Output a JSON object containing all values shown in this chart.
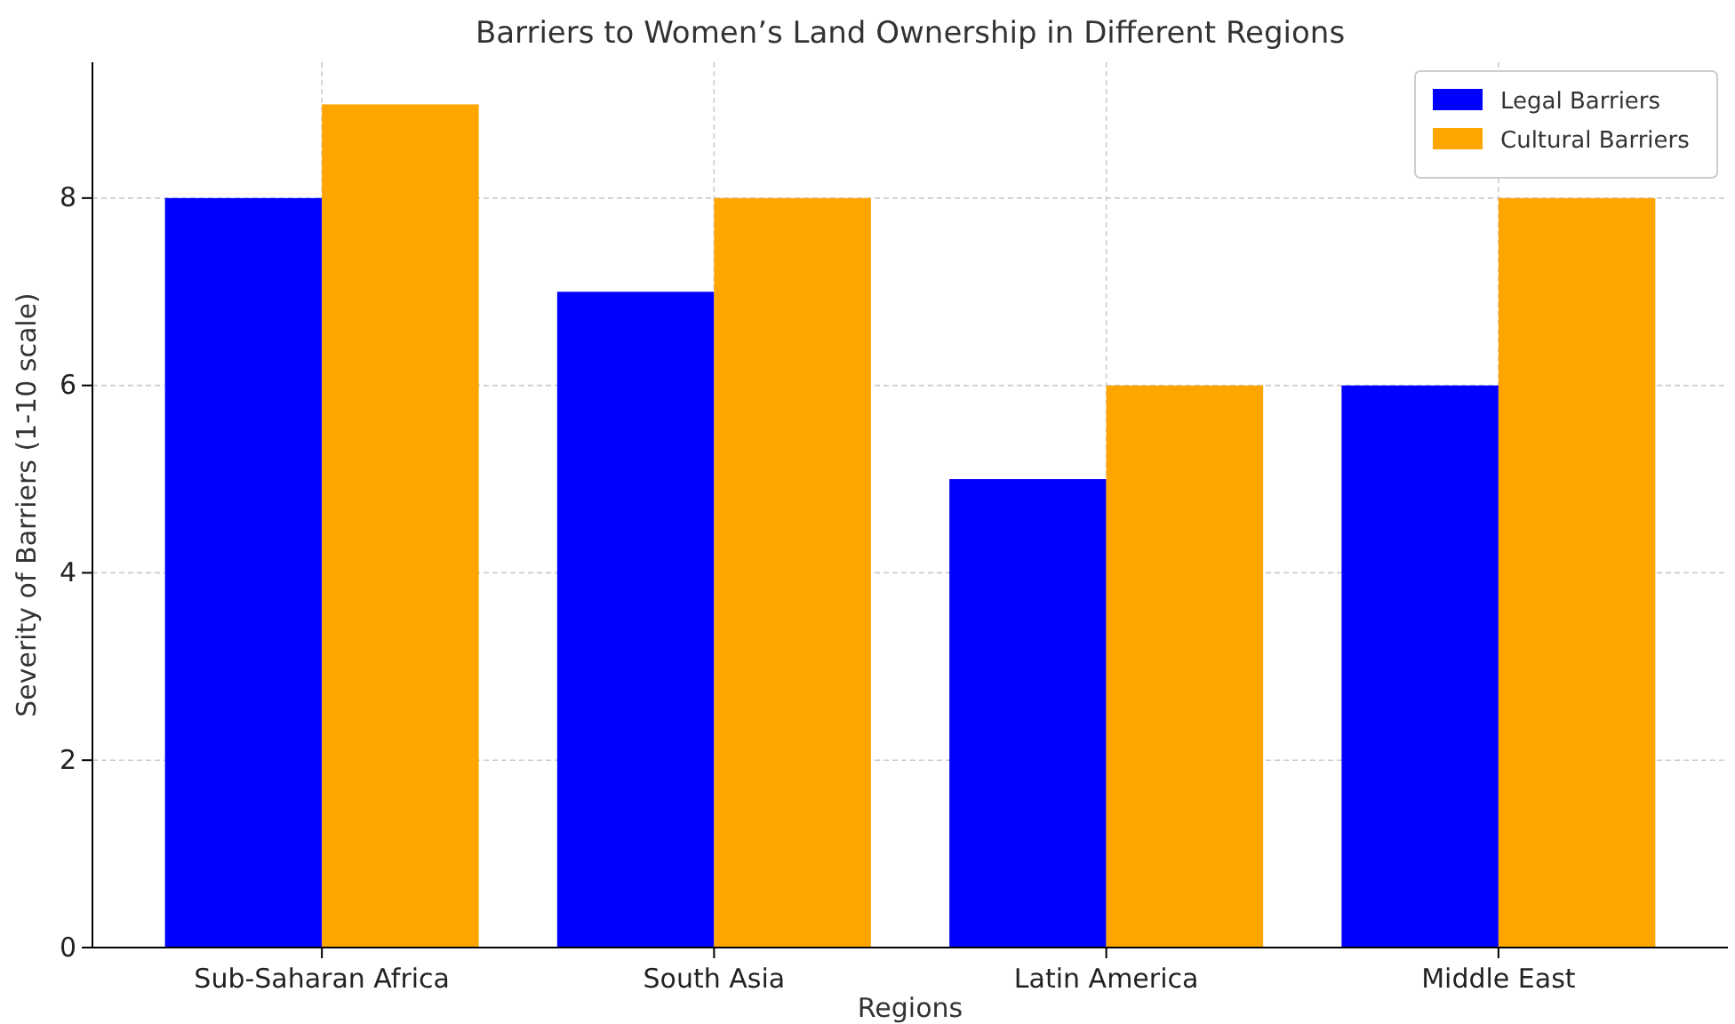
{
  "chart_data": {
    "type": "bar",
    "title": "Barriers to Women’s Land Ownership in Different Regions",
    "xlabel": "Regions",
    "ylabel": "Severity of Barriers (1-10 scale)",
    "categories": [
      "Sub-Saharan Africa",
      "South Asia",
      "Latin America",
      "Middle East"
    ],
    "series": [
      {
        "name": "Legal Barriers",
        "color": "#0000ff",
        "values": [
          8,
          7,
          5,
          6
        ]
      },
      {
        "name": "Cultural Barriers",
        "color": "#ffa500",
        "values": [
          9,
          8,
          6,
          8
        ]
      }
    ],
    "ylim": [
      0,
      9.45
    ],
    "yticks": [
      0,
      2,
      4,
      6,
      8
    ],
    "grid": true,
    "legend": "top right"
  }
}
